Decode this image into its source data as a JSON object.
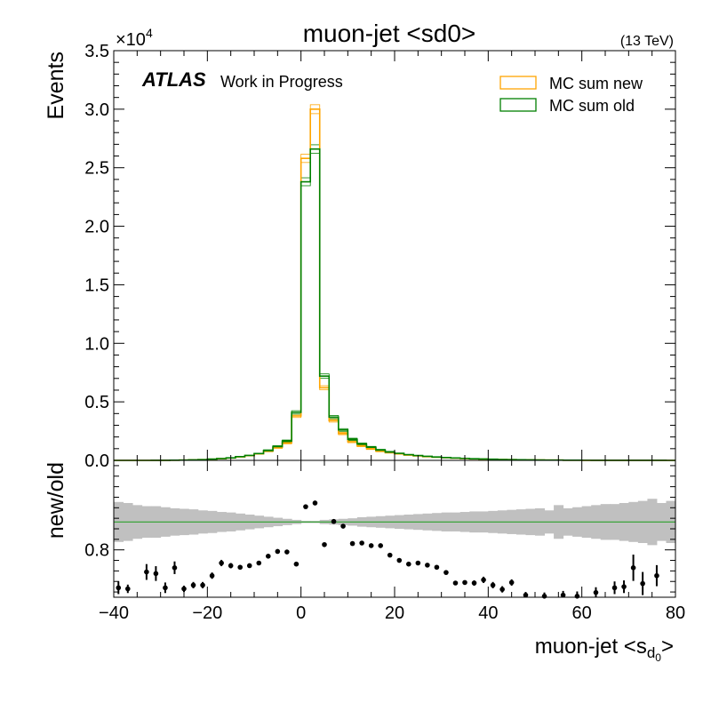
{
  "chart_data": [
    {
      "type": "line",
      "title": "muon-jet <sd0>",
      "energy_label": "(13 TeV)",
      "atlas_label": "ATLAS",
      "atlas_sublabel": "Work in Progress",
      "ylabel": "Events",
      "y_multiplier_base": "×10",
      "y_multiplier_exp": "4",
      "xlim": [
        -40,
        80
      ],
      "ylim": [
        0,
        35000
      ],
      "y_ticks": [
        0,
        5000,
        10000,
        15000,
        20000,
        25000,
        30000,
        35000
      ],
      "y_tick_labels": [
        "0.0",
        "0.5",
        "1.0",
        "1.5",
        "2.0",
        "2.5",
        "3.0",
        "3.5"
      ],
      "legend_position": "top-right",
      "bin_edges": [
        -40,
        -38,
        -36,
        -34,
        -32,
        -30,
        -28,
        -26,
        -24,
        -22,
        -20,
        -18,
        -16,
        -14,
        -12,
        -10,
        -8,
        -6,
        -4,
        -2,
        0,
        2,
        4,
        6,
        8,
        10,
        12,
        14,
        16,
        18,
        20,
        22,
        24,
        26,
        28,
        30,
        32,
        34,
        36,
        38,
        40,
        42,
        44,
        46,
        48,
        50,
        52,
        54,
        56,
        58,
        60,
        62,
        64,
        66,
        68,
        70,
        72,
        74,
        76,
        78,
        80
      ],
      "series": [
        {
          "name": "MC sum new",
          "color": "#FFA500",
          "values": [
            0,
            0,
            0,
            0,
            5,
            8,
            15,
            25,
            40,
            60,
            100,
            150,
            200,
            300,
            400,
            550,
            800,
            1100,
            1500,
            3800,
            25800,
            30000,
            6200,
            3400,
            2300,
            1600,
            1250,
            1000,
            800,
            650,
            550,
            450,
            380,
            320,
            270,
            230,
            190,
            160,
            130,
            110,
            90,
            70,
            60,
            50,
            40,
            30,
            25,
            20,
            15,
            10,
            8,
            6,
            4,
            3,
            2,
            2,
            1,
            1,
            1,
            0
          ]
        },
        {
          "name": "MC sum old",
          "color": "#008000",
          "values": [
            0,
            0,
            0,
            0,
            5,
            8,
            16,
            26,
            42,
            65,
            108,
            160,
            210,
            315,
            420,
            580,
            840,
            1180,
            1650,
            4100,
            23800,
            26600,
            7200,
            3700,
            2600,
            1800,
            1400,
            1120,
            880,
            710,
            600,
            490,
            410,
            345,
            290,
            245,
            205,
            170,
            140,
            118,
            96,
            76,
            64,
            54,
            43,
            33,
            27,
            22,
            16,
            11,
            9,
            7,
            5,
            4,
            3,
            2,
            2,
            1,
            1,
            0
          ]
        }
      ]
    },
    {
      "type": "scatter",
      "ylabel": "new/old",
      "xlabel_main": "muon-jet <s",
      "xlabel_sub": "d",
      "xlabel_subsub": "0",
      "xlabel_close": ">",
      "xlim": [
        -40,
        80
      ],
      "ylim": [
        0.71,
        0.97
      ],
      "y_ticks": [
        0.8
      ],
      "y_tick_labels": [
        "0.8"
      ],
      "x_ticks": [
        -40,
        -20,
        0,
        20,
        40,
        60,
        80
      ],
      "x_tick_labels": [
        "−40",
        "−20",
        "0",
        "20",
        "40",
        "60",
        "80"
      ],
      "reference_value": 0.853,
      "reference_color": "#2ca02c",
      "band_color": "#c0c0c0",
      "band_halfwidth": [
        0.038,
        0.036,
        0.032,
        0.03,
        0.03,
        0.028,
        0.026,
        0.025,
        0.024,
        0.022,
        0.021,
        0.019,
        0.018,
        0.016,
        0.014,
        0.012,
        0.01,
        0.008,
        0.006,
        0.004,
        0.002,
        0.002,
        0.004,
        0.005,
        0.006,
        0.007,
        0.009,
        0.01,
        0.011,
        0.012,
        0.013,
        0.014,
        0.015,
        0.016,
        0.017,
        0.018,
        0.018,
        0.019,
        0.02,
        0.02,
        0.021,
        0.022,
        0.023,
        0.024,
        0.025,
        0.026,
        0.022,
        0.032,
        0.026,
        0.028,
        0.03,
        0.032,
        0.034,
        0.034,
        0.036,
        0.038,
        0.04,
        0.044,
        0.036,
        0.04
      ],
      "points": [
        {
          "x": -39,
          "y": 0.728,
          "err": 0.012
        },
        {
          "x": -37,
          "y": 0.726,
          "err": 0.008
        },
        {
          "x": -33,
          "y": 0.758,
          "err": 0.015
        },
        {
          "x": -31,
          "y": 0.755,
          "err": 0.014
        },
        {
          "x": -29,
          "y": 0.728,
          "err": 0.01
        },
        {
          "x": -27,
          "y": 0.766,
          "err": 0.012
        },
        {
          "x": -25,
          "y": 0.726,
          "err": 0.006
        },
        {
          "x": -23,
          "y": 0.733,
          "err": 0.006
        },
        {
          "x": -21,
          "y": 0.733,
          "err": 0.006
        },
        {
          "x": -19,
          "y": 0.751,
          "err": 0.006
        },
        {
          "x": -17,
          "y": 0.775,
          "err": 0.006
        },
        {
          "x": -15,
          "y": 0.77,
          "err": 0.005
        },
        {
          "x": -13,
          "y": 0.767,
          "err": 0.004
        },
        {
          "x": -11,
          "y": 0.77,
          "err": 0.004
        },
        {
          "x": -9,
          "y": 0.775,
          "err": 0.003
        },
        {
          "x": -7,
          "y": 0.788,
          "err": 0.003
        },
        {
          "x": -5,
          "y": 0.797,
          "err": 0.003
        },
        {
          "x": -3,
          "y": 0.796,
          "err": 0.002
        },
        {
          "x": -1,
          "y": 0.773,
          "err": 0.002
        },
        {
          "x": 1,
          "y": 0.882,
          "err": 0.001
        },
        {
          "x": 3,
          "y": 0.889,
          "err": 0.001
        },
        {
          "x": 5,
          "y": 0.81,
          "err": 0.002
        },
        {
          "x": 7,
          "y": 0.854,
          "err": 0.002
        },
        {
          "x": 9,
          "y": 0.845,
          "err": 0.002
        },
        {
          "x": 11,
          "y": 0.812,
          "err": 0.002
        },
        {
          "x": 13,
          "y": 0.813,
          "err": 0.002
        },
        {
          "x": 15,
          "y": 0.808,
          "err": 0.002
        },
        {
          "x": 17,
          "y": 0.808,
          "err": 0.002
        },
        {
          "x": 19,
          "y": 0.79,
          "err": 0.002
        },
        {
          "x": 21,
          "y": 0.78,
          "err": 0.002
        },
        {
          "x": 23,
          "y": 0.773,
          "err": 0.002
        },
        {
          "x": 25,
          "y": 0.775,
          "err": 0.002
        },
        {
          "x": 27,
          "y": 0.771,
          "err": 0.003
        },
        {
          "x": 29,
          "y": 0.767,
          "err": 0.003
        },
        {
          "x": 31,
          "y": 0.757,
          "err": 0.004
        },
        {
          "x": 33,
          "y": 0.737,
          "err": 0.004
        },
        {
          "x": 35,
          "y": 0.738,
          "err": 0.004
        },
        {
          "x": 37,
          "y": 0.737,
          "err": 0.005
        },
        {
          "x": 39,
          "y": 0.743,
          "err": 0.006
        },
        {
          "x": 41,
          "y": 0.733,
          "err": 0.006
        },
        {
          "x": 43,
          "y": 0.725,
          "err": 0.006
        },
        {
          "x": 45,
          "y": 0.738,
          "err": 0.006
        },
        {
          "x": 48,
          "y": 0.714,
          "err": 0.006
        },
        {
          "x": 52,
          "y": 0.712,
          "err": 0.007
        },
        {
          "x": 56,
          "y": 0.714,
          "err": 0.008
        },
        {
          "x": 59,
          "y": 0.712,
          "err": 0.009
        },
        {
          "x": 63,
          "y": 0.719,
          "err": 0.01
        },
        {
          "x": 67,
          "y": 0.728,
          "err": 0.012
        },
        {
          "x": 69,
          "y": 0.73,
          "err": 0.012
        },
        {
          "x": 71,
          "y": 0.766,
          "err": 0.025
        },
        {
          "x": 73,
          "y": 0.736,
          "err": 0.022
        },
        {
          "x": 76,
          "y": 0.751,
          "err": 0.02
        }
      ]
    }
  ]
}
